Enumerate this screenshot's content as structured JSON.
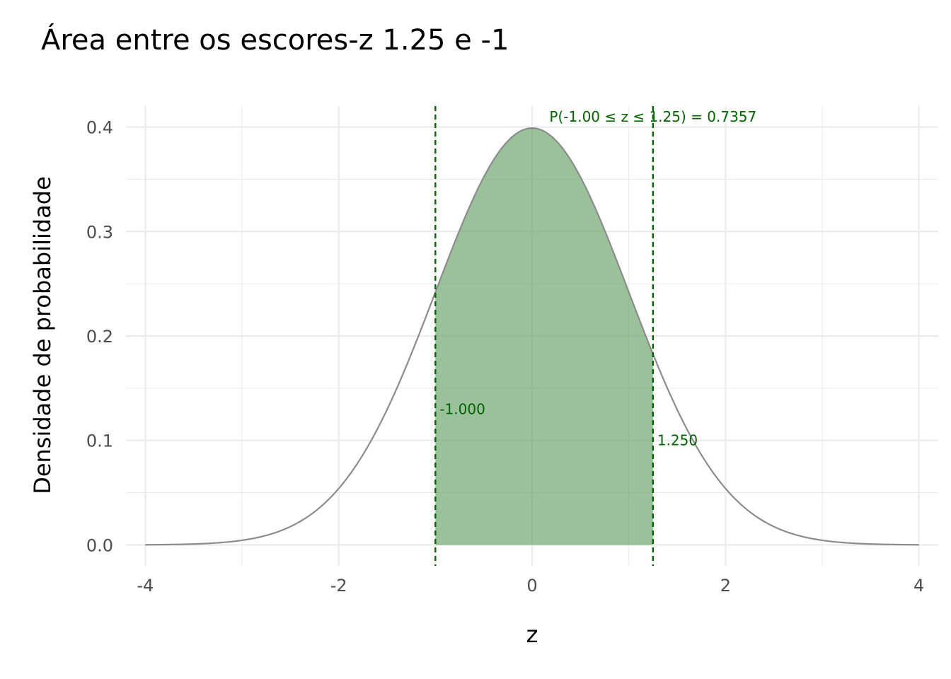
{
  "chart_data": {
    "type": "area",
    "title": "Área entre os escores-z 1.25 e -1",
    "xlabel": "z",
    "ylabel": "Densidade de probabilidade",
    "xlim": [
      -4.2,
      4.2
    ],
    "ylim": [
      -0.02,
      0.42
    ],
    "x_ticks": [
      -4,
      -2,
      0,
      2,
      4
    ],
    "x_tick_labels": [
      "-4",
      "-2",
      "0",
      "2",
      "4"
    ],
    "y_ticks": [
      0.0,
      0.1,
      0.2,
      0.3,
      0.4
    ],
    "y_tick_labels": [
      "0.0",
      "0.1",
      "0.2",
      "0.3",
      "0.4"
    ],
    "grid": true,
    "curve": {
      "distribution": "standard normal",
      "x_range": [
        -4,
        4
      ],
      "color": "#8c8c8c"
    },
    "shaded_region": {
      "from": -1.0,
      "to": 1.25,
      "color": "#6aa46a"
    },
    "boundaries": [
      {
        "z": -1.0,
        "label": "-1.000",
        "label_y": 0.13
      },
      {
        "z": 1.25,
        "label": "1.250",
        "label_y": 0.1
      }
    ],
    "probability_annotation": {
      "text": "P(-1.00 ≤ z ≤ 1.25) = 0.7357",
      "z": 1.25,
      "y": 0.41
    },
    "annotation_color": "#006400"
  }
}
